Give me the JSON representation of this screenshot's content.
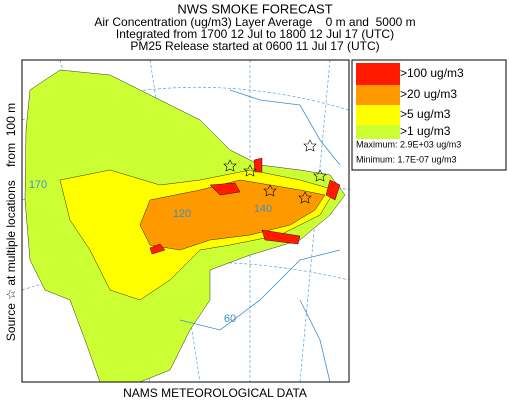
{
  "header": {
    "title": "NWS SMOKE FORECAST",
    "lines": [
      "Air Concentration (ug/m3) Layer Average    0 m and  5000 m",
      "Integrated from 1700 12 Jul to 1800 12 Jul 17 (UTC)",
      "PM25 Release started at 0600 11 Jul 17 (UTC)"
    ]
  },
  "legend": {
    "items": [
      {
        "label": ">100 ug/m3",
        "color": "#ff1a00"
      },
      {
        "label": ">20 ug/m3",
        "color": "#ff9900"
      },
      {
        "label": ">5 ug/m3",
        "color": "#ffff00"
      },
      {
        "label": ">1 ug/m3",
        "color": "#ccff33"
      }
    ],
    "maximum": "Maximum: 2.9E+03 ug/m3",
    "minimum": "Minimum: 1.7E-07 ug/m3"
  },
  "side_label": "Source ☆ at multiple locations    from  100 m",
  "footer": "NAMS METEOROLOGICAL DATA",
  "map": {
    "grid_labels": [
      "170",
      "140",
      "120",
      "60"
    ]
  }
}
